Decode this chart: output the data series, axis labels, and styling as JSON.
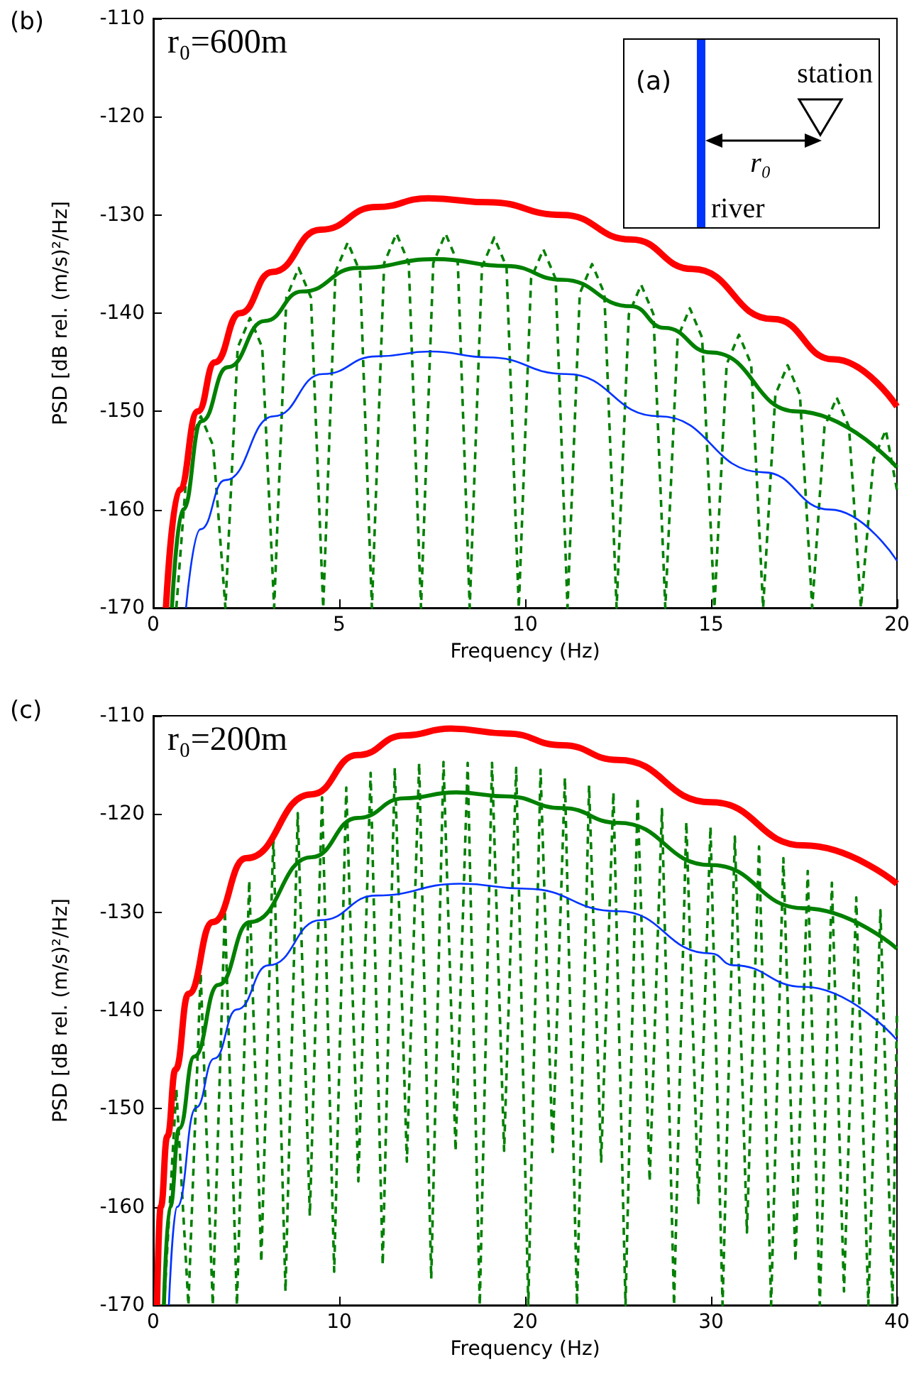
{
  "chart_data": [
    {
      "type": "line",
      "title": "(b)",
      "xlabel": "Frequency (Hz)",
      "ylabel": "PSD [dB rel. (m/s)²/Hz]",
      "annotations": [
        "r₀=600m",
        "(a)",
        "station",
        "r₀",
        "river"
      ],
      "xlim": [
        0,
        20
      ],
      "ylim": [
        -170,
        -110
      ],
      "xticks": [
        0,
        5,
        10,
        15,
        20
      ],
      "yticks": [
        -170,
        -160,
        -150,
        -140,
        -130,
        -120,
        -110
      ],
      "grid": false,
      "marker": "none",
      "series": [
        {
          "color": "#ff0000",
          "line_style": "solid",
          "x": [
            0.34,
            0.7,
            1.2,
            1.66,
            2.33,
            3.2,
            4.5,
            6,
            7.4,
            9,
            11,
            12.85,
            14.5,
            16.67,
            18.3,
            20
          ],
          "values": [
            -170,
            -158,
            -150,
            -145,
            -140,
            -135.8,
            -131.5,
            -129.2,
            -128.3,
            -128.7,
            -130,
            -132.5,
            -135.5,
            -140.6,
            -144.7,
            -149.5
          ]
        },
        {
          "color": "#008000",
          "line_style": "solid",
          "x": [
            0.5,
            0.8,
            1.3,
            2,
            3,
            4,
            5.5,
            7.59,
            9.5,
            11,
            12.85,
            13.75,
            15,
            17.3,
            20
          ],
          "values": [
            -170,
            -160,
            -151,
            -145.5,
            -140.8,
            -137.8,
            -135.4,
            -134.5,
            -135.2,
            -136.6,
            -139.3,
            -141.5,
            -144,
            -150,
            -155.7
          ]
        },
        {
          "color": "#0033ff",
          "line_style": "solid",
          "x": [
            0.88,
            1.27,
            1.93,
            3.24,
            4.56,
            6,
            7.46,
            9,
            11.1,
            13.6,
            16.4,
            18.2,
            20
          ],
          "values": [
            -170,
            -162,
            -157,
            -150.5,
            -146.2,
            -144.4,
            -143.9,
            -144.5,
            -146.2,
            -150.5,
            -156.2,
            -160,
            -165.2
          ]
        },
        {
          "color": "#008000",
          "line_style": "dashed",
          "x": [
            0.62,
            0.95,
            1.28,
            1.61,
            1.94,
            2.27,
            2.6,
            2.93,
            3.25,
            3.58,
            3.91,
            4.24,
            4.57,
            4.9,
            5.23,
            5.56,
            5.88,
            6.21,
            6.54,
            6.87,
            7.2,
            7.53,
            7.86,
            8.19,
            8.51,
            8.84,
            9.17,
            9.5,
            9.83,
            10.16,
            10.49,
            10.82,
            11.14,
            11.47,
            11.8,
            12.13,
            12.46,
            12.79,
            13.12,
            13.45,
            13.77,
            14.1,
            14.43,
            14.76,
            15.09,
            15.42,
            15.75,
            16.08,
            16.4,
            16.73,
            17.06,
            17.39,
            17.72,
            18.05,
            18.38,
            18.71,
            19.03,
            19.37,
            19.7,
            20
          ],
          "values": [
            -170,
            -153.5,
            -150.5,
            -153.5,
            -170,
            -143.5,
            -140.5,
            -143.5,
            -170,
            -138.4,
            -135.4,
            -138.4,
            -170,
            -135.8,
            -132.8,
            -135.8,
            -170,
            -134.9,
            -131.9,
            -134.9,
            -170,
            -134.9,
            -131.9,
            -134.9,
            -170,
            -135.3,
            -132.3,
            -135.3,
            -170,
            -136.5,
            -133.5,
            -136.5,
            -170,
            -138,
            -135,
            -138,
            -170,
            -140.1,
            -137.1,
            -140.1,
            -170,
            -142.5,
            -139.5,
            -142.5,
            -170,
            -145.2,
            -142.2,
            -145.2,
            -170,
            -148.3,
            -145.3,
            -148.3,
            -170,
            -151.6,
            -148.6,
            -151.6,
            -170,
            -154.9,
            -151.9,
            -158
          ]
        }
      ]
    },
    {
      "type": "line",
      "title": "(c)",
      "xlabel": "Frequency (Hz)",
      "ylabel": "PSD [dB rel. (m/s)²/Hz]",
      "annotations": [
        "r₀=200m"
      ],
      "xlim": [
        0,
        40
      ],
      "ylim": [
        -170,
        -110
      ],
      "xticks": [
        0,
        10,
        20,
        30,
        40
      ],
      "yticks": [
        -170,
        -160,
        -150,
        -140,
        -130,
        -120,
        -110
      ],
      "grid": false,
      "marker": "none",
      "series": [
        {
          "color": "#ff0000",
          "line_style": "solid",
          "x": [
            0.2,
            0.4,
            0.76,
            1.2,
            1.9,
            3.2,
            5,
            8.5,
            11,
            13.5,
            16,
            19,
            22,
            25,
            30,
            35,
            40
          ],
          "values": [
            -170,
            -160,
            -152.8,
            -146,
            -138.3,
            -131,
            -124.5,
            -118,
            -114,
            -112,
            -111.3,
            -111.8,
            -113,
            -114.5,
            -118.8,
            -123.2,
            -127.1
          ]
        },
        {
          "color": "#008000",
          "line_style": "solid",
          "x": [
            0.57,
            0.9,
            1.4,
            2.2,
            3.5,
            5.2,
            8.5,
            11,
            13.5,
            16.3,
            19,
            22,
            25,
            30,
            35,
            40
          ],
          "values": [
            -170,
            -160,
            -152,
            -144.7,
            -137.4,
            -131,
            -124.4,
            -120.4,
            -118.4,
            -117.8,
            -118.2,
            -119.4,
            -120.9,
            -125.2,
            -129.6,
            -133.7
          ]
        },
        {
          "color": "#0033ff",
          "line_style": "solid",
          "x": [
            0.84,
            1.28,
            2.3,
            3.28,
            4.5,
            6.2,
            9,
            12,
            16.5,
            20,
            25,
            30,
            31.2,
            35,
            40
          ],
          "values": [
            -170,
            -160,
            -149.9,
            -144.9,
            -139.9,
            -135.4,
            -130.8,
            -128.3,
            -127.1,
            -127.6,
            -129.9,
            -134.2,
            -135.4,
            -137.6,
            -143
          ]
        },
        {
          "color": "#008000",
          "line_style": "dashed",
          "x": [
            0.58,
            1.24,
            1.89,
            2.55,
            3.2,
            3.85,
            4.5,
            5.16,
            5.81,
            6.46,
            7.11,
            7.77,
            8.42,
            9.08,
            9.73,
            10.38,
            11.03,
            11.69,
            12.34,
            12.99,
            13.64,
            14.3,
            14.95,
            15.61,
            16.26,
            16.91,
            17.56,
            18.22,
            18.87,
            19.52,
            20.17,
            20.83,
            21.48,
            22.14,
            22.79,
            23.44,
            24.09,
            24.75,
            25.4,
            26.05,
            26.7,
            27.36,
            28.01,
            28.67,
            29.32,
            29.97,
            30.62,
            31.28,
            31.93,
            32.58,
            33.23,
            33.89,
            34.54,
            35.2,
            35.85,
            36.5,
            37.15,
            37.81,
            38.46,
            39.11,
            39.76,
            40
          ],
          "values": [
            -170,
            -148,
            -170,
            -136.2,
            -170,
            -129.8,
            -170,
            -126.8,
            -165.6,
            -122.3,
            -168.6,
            -119.9,
            -160.9,
            -118.3,
            -166.6,
            -117.3,
            -157.4,
            -115.8,
            -165.9,
            -115.3,
            -155.4,
            -114.8,
            -167.3,
            -114.7,
            -154.3,
            -114.8,
            -170,
            -114.8,
            -154.3,
            -115.3,
            -170,
            -115.5,
            -154.4,
            -116.3,
            -170,
            -117.1,
            -155.4,
            -117.8,
            -170,
            -118.3,
            -157.4,
            -119.5,
            -170,
            -120.8,
            -159.6,
            -121.3,
            -170,
            -122.3,
            -162.6,
            -123.3,
            -170,
            -124.5,
            -165.6,
            -125.8,
            -170,
            -127,
            -168.6,
            -128.5,
            -170,
            -129.8,
            -170,
            -140
          ]
        }
      ]
    }
  ]
}
